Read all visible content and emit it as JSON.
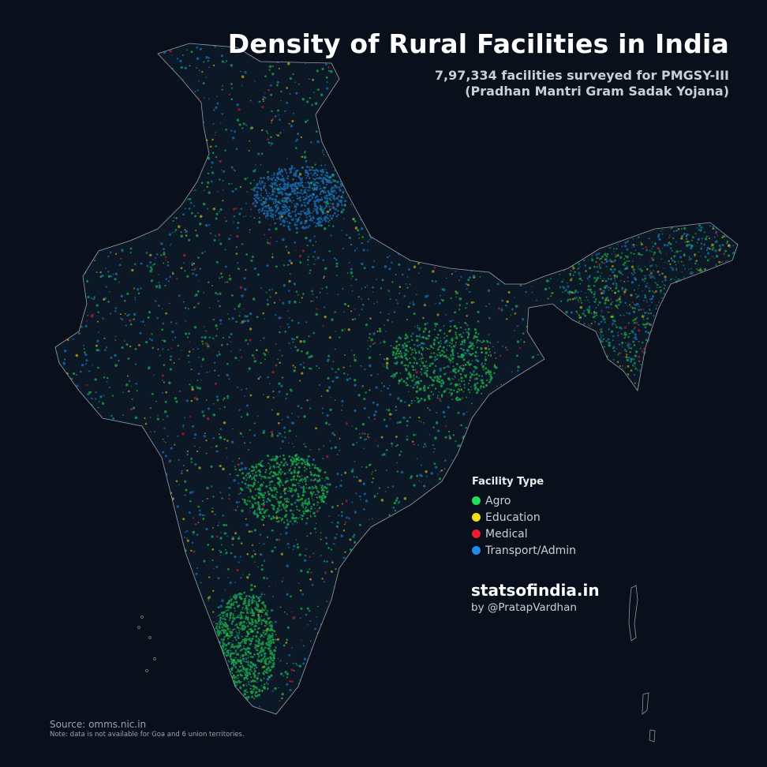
{
  "title": "Density of Rural Facilities in India",
  "subtitle_line1": "7,97,334 facilities surveyed for PMGSY-III",
  "subtitle_line2": "(Pradhan Mantri Gram Sadak Yojana)",
  "legend": {
    "title": "Facility Type",
    "items": [
      {
        "label": "Agro",
        "color": "#1fe05a"
      },
      {
        "label": "Education",
        "color": "#f2dc16"
      },
      {
        "label": "Medical",
        "color": "#ee1c2e"
      },
      {
        "label": "Transport/Admin",
        "color": "#1e8ee8"
      }
    ]
  },
  "brand": {
    "name": "statsofindia.in",
    "by": "by @PratapVardhan"
  },
  "source": "Source: omms.nic.in",
  "note": "Note: data is not available for Goa and 6 union territories.",
  "colors": {
    "background": "#09101b",
    "outline": "#c8ced8"
  }
}
